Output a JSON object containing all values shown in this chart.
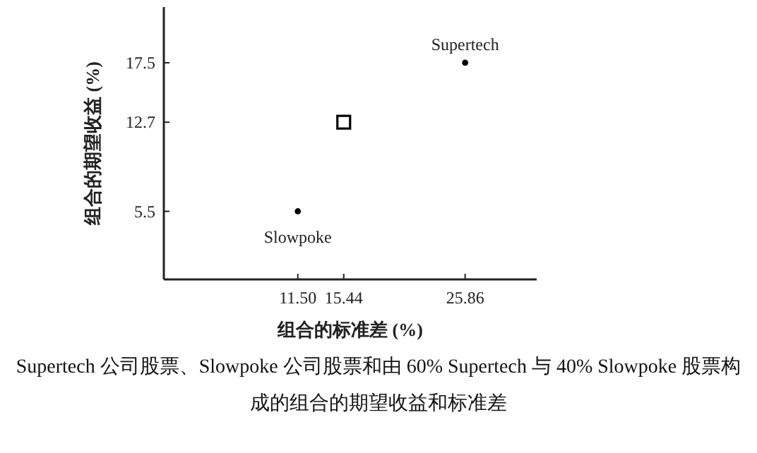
{
  "chart_data": {
    "type": "scatter",
    "xlabel": "组合的标准差 (%)",
    "ylabel": "组合的期望收益 (%)",
    "xlim": [
      0,
      32
    ],
    "ylim": [
      0,
      22
    ],
    "xticks": [
      {
        "value": 11.5,
        "label": "11.50"
      },
      {
        "value": 15.44,
        "label": "15.44"
      },
      {
        "value": 25.86,
        "label": "25.86"
      }
    ],
    "yticks": [
      5.5,
      12.7,
      17.5
    ],
    "series": [
      {
        "color": "#000000",
        "marker": "circle",
        "x": [
          11.5,
          25.86
        ],
        "values": [
          5.5,
          17.5
        ]
      },
      {
        "color": "#000000",
        "marker": "square",
        "x": [
          15.44
        ],
        "values": [
          12.7
        ]
      }
    ],
    "annotations": [
      {
        "text": "Supertech",
        "x": 25.86,
        "y": 17.5
      },
      {
        "text": "Slowpoke",
        "x": 11.5,
        "y": 5.5
      },
      "Supertech 公司股票、Slowpoke 公司股票和由 60% Supertech 与 40% Slowpoke 股票构成的组合的期望收益和标准差"
    ]
  }
}
